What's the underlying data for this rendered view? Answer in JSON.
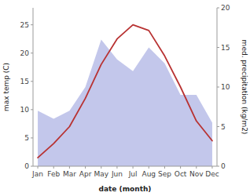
{
  "chart_data": {
    "type": "line",
    "categories": [
      "Jan",
      "Feb",
      "Mar",
      "Apr",
      "May",
      "Jun",
      "Jul",
      "Aug",
      "Sep",
      "Oct",
      "Nov",
      "Dec"
    ],
    "series": [
      {
        "type": "area",
        "axis": "y2",
        "color": "#b8bde8",
        "values": [
          7.0,
          6.0,
          7.0,
          10.0,
          16.0,
          13.5,
          12.0,
          15.0,
          13.0,
          9.0,
          9.0,
          5.5
        ]
      },
      {
        "type": "line",
        "color": "#b83232",
        "values": [
          1.5,
          4.0,
          7.0,
          12.0,
          18.0,
          22.5,
          25.0,
          24.0,
          19.5,
          14.0,
          8.0,
          4.5
        ]
      }
    ],
    "xlabel": "date (month)",
    "ylabel": "max temp (C)",
    "y2label": "med. precipitation (kg/m2)",
    "ylim": [
      0,
      28
    ],
    "yticks": [
      0,
      5,
      10,
      15,
      20,
      25
    ],
    "y2lim": [
      0,
      20
    ],
    "y2ticks": [
      0,
      5,
      10,
      15,
      20
    ],
    "grid": false
  }
}
